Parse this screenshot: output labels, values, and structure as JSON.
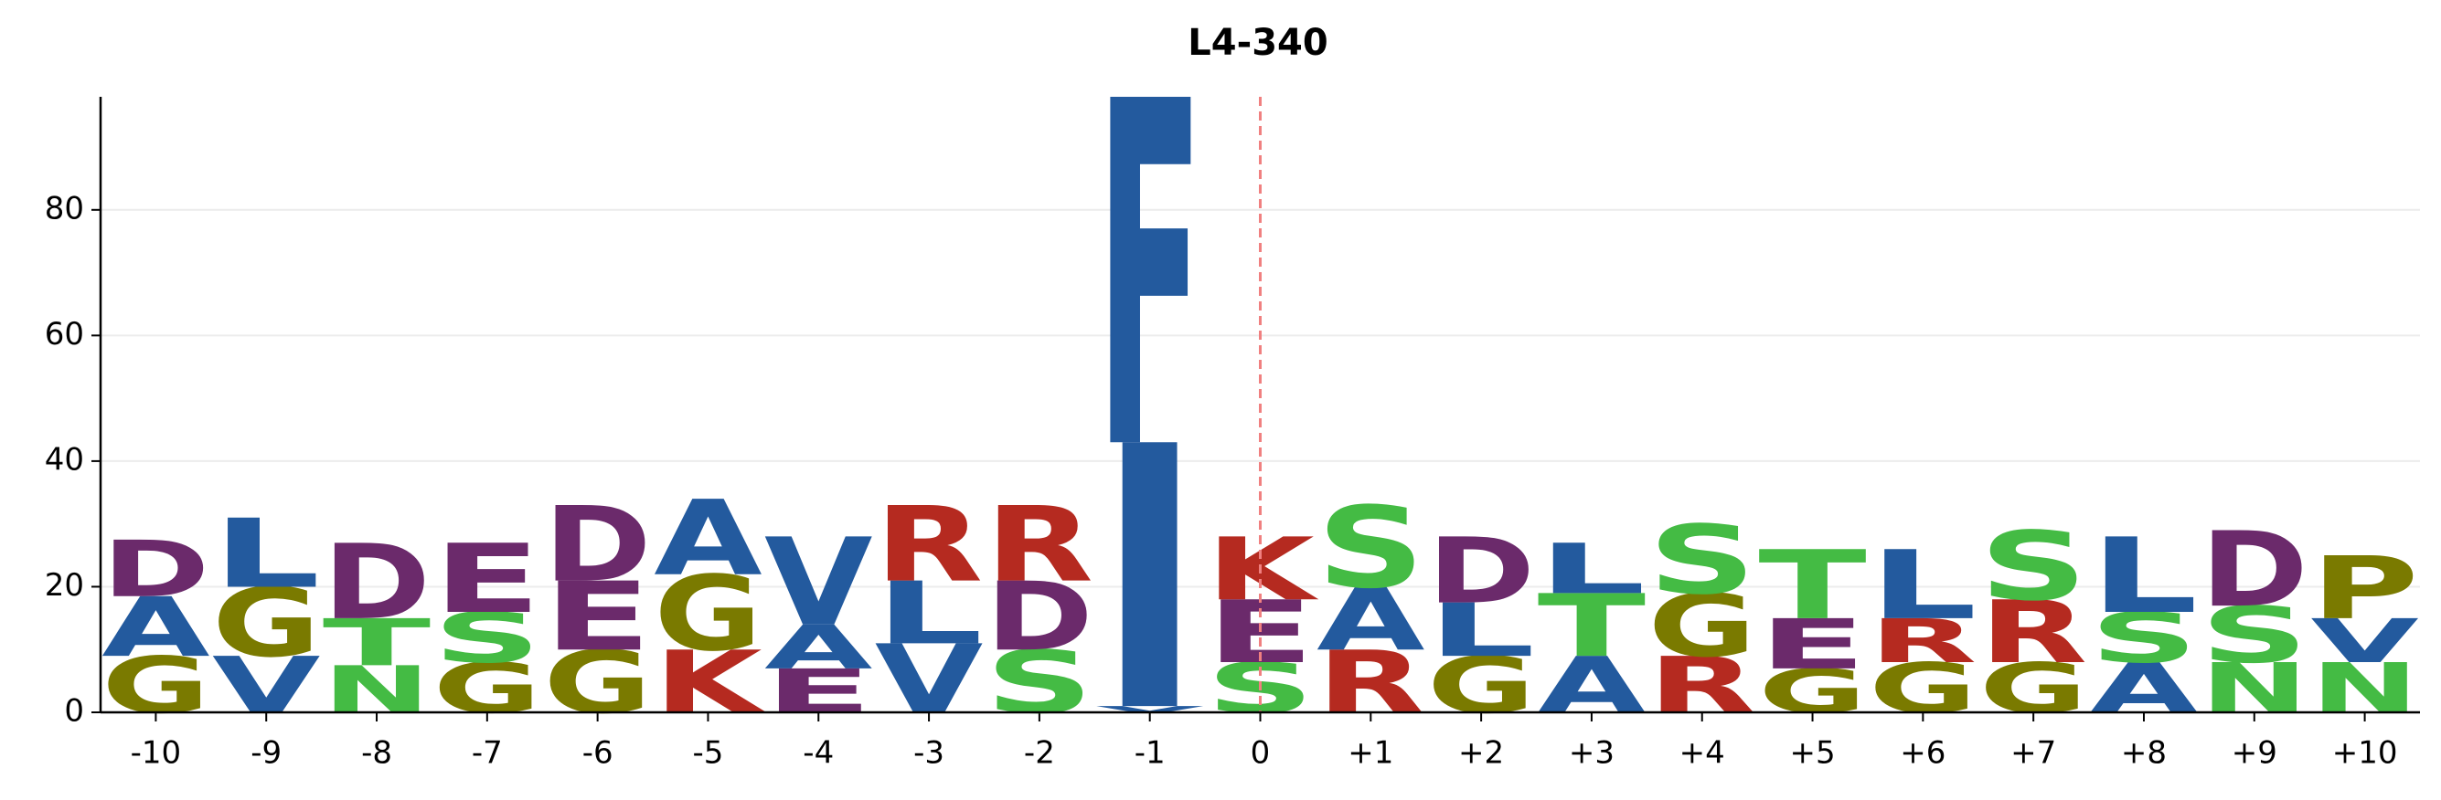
{
  "chart_data": {
    "type": "logo",
    "title": "L4-340",
    "categories": [
      "-10",
      "-9",
      "-8",
      "-7",
      "-6",
      "-5",
      "-4",
      "-3",
      "-2",
      "-1",
      "0",
      "+1",
      "+2",
      "+3",
      "+4",
      "+5",
      "+6",
      "+7",
      "+8",
      "+9",
      "+10"
    ],
    "stacks": [
      [
        {
          "letter": "G",
          "value": 9
        },
        {
          "letter": "A",
          "value": 9.5
        },
        {
          "letter": "D",
          "value": 9
        }
      ],
      [
        {
          "letter": "V",
          "value": 9
        },
        {
          "letter": "G",
          "value": 11
        },
        {
          "letter": "L",
          "value": 11
        }
      ],
      [
        {
          "letter": "N",
          "value": 7.5
        },
        {
          "letter": "T",
          "value": 7.5
        },
        {
          "letter": "D",
          "value": 12
        }
      ],
      [
        {
          "letter": "G",
          "value": 8
        },
        {
          "letter": "S",
          "value": 8
        },
        {
          "letter": "E",
          "value": 11
        }
      ],
      [
        {
          "letter": "G",
          "value": 10
        },
        {
          "letter": "E",
          "value": 11
        },
        {
          "letter": "D",
          "value": 12
        }
      ],
      [
        {
          "letter": "K",
          "value": 10
        },
        {
          "letter": "G",
          "value": 12
        },
        {
          "letter": "A",
          "value": 12
        }
      ],
      [
        {
          "letter": "E",
          "value": 7
        },
        {
          "letter": "A",
          "value": 7
        },
        {
          "letter": "V",
          "value": 14
        }
      ],
      [
        {
          "letter": "V",
          "value": 11
        },
        {
          "letter": "L",
          "value": 10
        },
        {
          "letter": "R",
          "value": 12
        }
      ],
      [
        {
          "letter": "S",
          "value": 10
        },
        {
          "letter": "D",
          "value": 11
        },
        {
          "letter": "R",
          "value": 12
        }
      ],
      [
        {
          "letter": "V",
          "value": 1
        },
        {
          "letter": "I",
          "value": 42
        },
        {
          "letter": "F",
          "value": 55
        }
      ],
      [
        {
          "letter": "S",
          "value": 8
        },
        {
          "letter": "E",
          "value": 10
        },
        {
          "letter": "K",
          "value": 10
        }
      ],
      [
        {
          "letter": "R",
          "value": 10
        },
        {
          "letter": "A",
          "value": 10
        },
        {
          "letter": "S",
          "value": 13
        }
      ],
      [
        {
          "letter": "G",
          "value": 9
        },
        {
          "letter": "L",
          "value": 8.5
        },
        {
          "letter": "D",
          "value": 10.5
        }
      ],
      [
        {
          "letter": "A",
          "value": 9
        },
        {
          "letter": "T",
          "value": 10
        },
        {
          "letter": "L",
          "value": 8
        }
      ],
      [
        {
          "letter": "R",
          "value": 9
        },
        {
          "letter": "G",
          "value": 10
        },
        {
          "letter": "S",
          "value": 11
        }
      ],
      [
        {
          "letter": "G",
          "value": 7
        },
        {
          "letter": "E",
          "value": 8
        },
        {
          "letter": "T",
          "value": 11
        }
      ],
      [
        {
          "letter": "G",
          "value": 8
        },
        {
          "letter": "R",
          "value": 7
        },
        {
          "letter": "L",
          "value": 11
        }
      ],
      [
        {
          "letter": "G",
          "value": 8
        },
        {
          "letter": "R",
          "value": 10
        },
        {
          "letter": "S",
          "value": 11
        }
      ],
      [
        {
          "letter": "A",
          "value": 8
        },
        {
          "letter": "S",
          "value": 8
        },
        {
          "letter": "L",
          "value": 12
        }
      ],
      [
        {
          "letter": "N",
          "value": 8
        },
        {
          "letter": "S",
          "value": 9
        },
        {
          "letter": "D",
          "value": 12
        }
      ],
      [
        {
          "letter": "N",
          "value": 8
        },
        {
          "letter": "V",
          "value": 7
        },
        {
          "letter": "P",
          "value": 10
        }
      ]
    ],
    "colors": {
      "D": "#6b2a6b",
      "E": "#6b2a6b",
      "A": "#235a9e",
      "L": "#235a9e",
      "V": "#235a9e",
      "F": "#235a9e",
      "I": "#235a9e",
      "G": "#7a7a00",
      "P": "#7a7a00",
      "N": "#44bb44",
      "S": "#44bb44",
      "T": "#44bb44",
      "K": "#b52a20",
      "R": "#b52a20"
    },
    "reference_category": "0",
    "reference_color": "#f08080",
    "ylim": [
      0,
      98
    ],
    "yticks": [
      0,
      20,
      40,
      60,
      80
    ],
    "grid": true
  }
}
